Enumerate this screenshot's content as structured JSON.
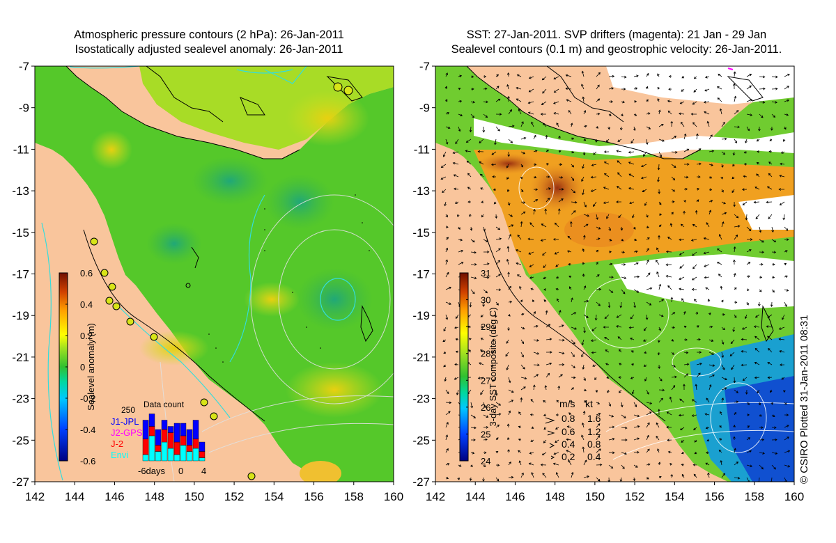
{
  "left_panel": {
    "title_line1": "Atmospheric pressure contours (2 hPa): 26-Jan-2011",
    "title_line2": "Isostatically adjusted sealevel anomaly: 26-Jan-2011",
    "colorbar": {
      "label": "Sealevel anomaly (m)",
      "ticks": [
        "0.6",
        "0.4",
        "0.2",
        "0",
        "-0.2",
        "-0.4",
        "-0.6"
      ],
      "range": [
        -0.6,
        0.6
      ]
    },
    "data_count": {
      "title": "Data count",
      "max_label": "250",
      "x_labels": [
        "-6days",
        "0",
        "4"
      ],
      "legend": [
        {
          "name": "J1-JPL",
          "color": "#0000ff"
        },
        {
          "name": "J2-GPS",
          "color": "#ff00ff"
        },
        {
          "name": "J-2",
          "color": "#ff0000"
        },
        {
          "name": "Envi",
          "color": "#00ffff"
        }
      ]
    }
  },
  "right_panel": {
    "title_line1": "SST: 27-Jan-2011. SVP drifters (magenta): 21 Jan - 29 Jan",
    "title_line2": "Sealevel contours (0.1 m) and geostrophic velocity: 26-Jan-2011.",
    "colorbar": {
      "label": "3-day SST composite (deg C)",
      "ticks": [
        "31",
        "30",
        "29",
        "28",
        "27",
        "26",
        "25",
        "24"
      ],
      "range": [
        24,
        31
      ]
    },
    "velocity_legend": {
      "header_ms": "m/s",
      "header_kt": "kt",
      "rows": [
        {
          "ms": "0.8",
          "kt": "1.6"
        },
        {
          "ms": "0.6",
          "kt": "1.2"
        },
        {
          "ms": "0.4",
          "kt": "0.8"
        },
        {
          "ms": "0.2",
          "kt": "0.4"
        }
      ]
    },
    "credit": "© CSIRO Plotted 31-Jan-2011 08:31"
  },
  "axes": {
    "y_ticks": [
      "-7",
      "-9",
      "-11",
      "-13",
      "-15",
      "-17",
      "-19",
      "-21",
      "-23",
      "-25",
      "-27"
    ],
    "x_ticks": [
      "142",
      "144",
      "146",
      "148",
      "150",
      "152",
      "154",
      "156",
      "158",
      "160"
    ],
    "lon_range": [
      142,
      160
    ],
    "lat_range": [
      -27,
      -7
    ]
  },
  "colors": {
    "land": "#f9c59c",
    "sea_green": "#55cc22",
    "contour_cyan": "#33dddd"
  }
}
